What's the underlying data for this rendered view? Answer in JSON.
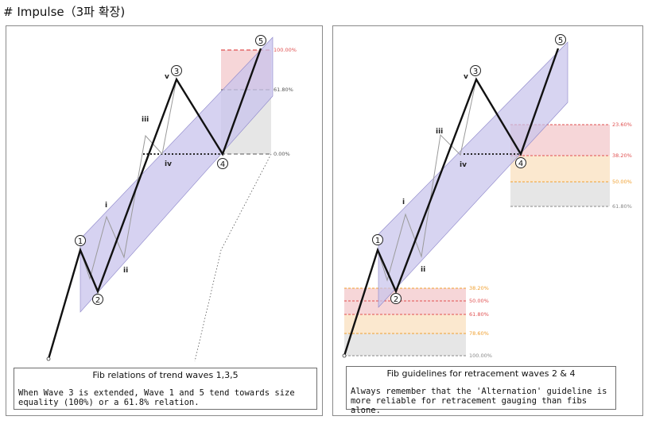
{
  "page": {
    "title": "# Impulse（3파 확장)"
  },
  "panels": [
    {
      "caption_title": "Fib relations of trend waves 1,3,5",
      "caption_body": "When Wave 3 is extended, Wave 1 and 5 tend towards size equality (100%) or a 61.8% relation.",
      "wave_labels": [
        "1",
        "2",
        "3",
        "4",
        "5"
      ],
      "subwave_labels": [
        "i",
        "ii",
        "iii",
        "iv",
        "v"
      ],
      "fib_levels": [
        {
          "label": "100.00%",
          "color": "#e05050"
        },
        {
          "label": "61.80%",
          "color": "#555555"
        },
        {
          "label": "0.00%",
          "color": "#555555"
        }
      ]
    },
    {
      "caption_title": "Fib guidelines for retracement waves 2 & 4",
      "caption_body": "Always remember that the 'Alternation' guideline is more reliable for retracement gauging than fibs alone.",
      "wave_labels": [
        "1",
        "2",
        "3",
        "4",
        "5"
      ],
      "subwave_labels": [
        "i",
        "ii",
        "iii",
        "iv",
        "v"
      ],
      "wave4_levels": [
        {
          "label": "23.60%",
          "color": "#e05050"
        },
        {
          "label": "38.20%",
          "color": "#e05050"
        },
        {
          "label": "50.00%",
          "color": "#f0a030"
        },
        {
          "label": "61.80%",
          "color": "#888888"
        }
      ],
      "wave2_levels": [
        {
          "label": "38.20%",
          "color": "#f0a030"
        },
        {
          "label": "50.00%",
          "color": "#e05050"
        },
        {
          "label": "61.80%",
          "color": "#e05050"
        },
        {
          "label": "78.60%",
          "color": "#f0a030"
        },
        {
          "label": "100.00%",
          "color": "#888888"
        }
      ]
    }
  ],
  "colors": {
    "channel": "#c8c3ec",
    "channel_stroke": "#8a83c8",
    "red_zone": "#f6d6d8",
    "orange_zone": "#fbe8cf",
    "gray_zone": "#e6e6e6"
  }
}
